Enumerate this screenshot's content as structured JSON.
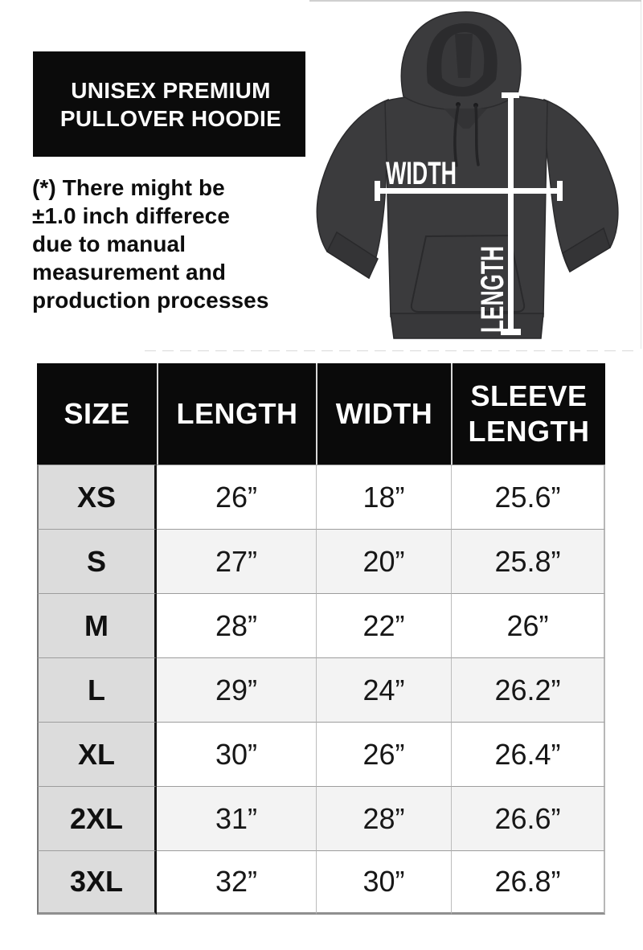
{
  "banner": {
    "title": "UNISEX PREMIUM\nPULLOVER HOODIE"
  },
  "disclaimer": "(*) There might be\n±1.0 inch differece\ndue to manual\nmeasurement and\nproduction processes",
  "diagram": {
    "width_label": "WIDTH",
    "length_label": "LENGTH",
    "garment": "pullover hoodie front view",
    "garment_color": "#3b3b3d",
    "arrow_color": "#ffffff"
  },
  "chart_data": {
    "type": "table",
    "title": "UNISEX PREMIUM PULLOVER HOODIE",
    "note": "(*) There might be ±1.0 inch differece due to manual measurement and production processes",
    "units": "inches",
    "columns": [
      "SIZE",
      "LENGTH",
      "WIDTH",
      "SLEEVE LENGTH"
    ],
    "rows": [
      [
        "XS",
        "26”",
        "18”",
        "25.6”"
      ],
      [
        "S",
        "27”",
        "20”",
        "25.8”"
      ],
      [
        "M",
        "28”",
        "22”",
        "26”"
      ],
      [
        "L",
        "29”",
        "24”",
        "26.2”"
      ],
      [
        "XL",
        "30”",
        "26”",
        "26.4”"
      ],
      [
        "2XL",
        "31”",
        "28”",
        "26.6”"
      ],
      [
        "3XL",
        "32”",
        "30”",
        "26.8”"
      ]
    ]
  },
  "colors": {
    "banner_bg": "#0b0b0b",
    "header_bg": "#0a0a0a",
    "size_col_bg": "#dcdcdc",
    "alt_row_bg": "#f3f3f3",
    "hoodie": "#3b3b3d",
    "overlay": "#ffffff"
  }
}
